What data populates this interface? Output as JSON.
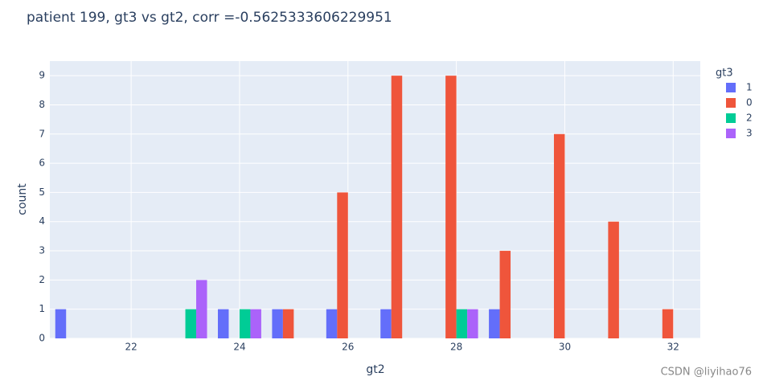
{
  "chart_data": {
    "type": "bar",
    "barmode": "group",
    "title": "patient 199, gt3 vs gt2, corr =-0.5625333606229951",
    "x_label": "gt2",
    "y_label": "count",
    "legend_title": "gt3",
    "legend_position": "right",
    "x": [
      21,
      22,
      23,
      24,
      25,
      26,
      27,
      28,
      29,
      30,
      31,
      32
    ],
    "series": [
      {
        "name": "1",
        "color": "#636efa",
        "values": [
          1,
          null,
          null,
          1,
          1,
          1,
          1,
          null,
          1,
          null,
          null,
          null
        ]
      },
      {
        "name": "0",
        "color": "#ef553b",
        "values": [
          null,
          null,
          null,
          null,
          1,
          5,
          9,
          9,
          3,
          7,
          4,
          1
        ]
      },
      {
        "name": "2",
        "color": "#00cc96",
        "values": [
          null,
          null,
          1,
          1,
          null,
          null,
          null,
          1,
          null,
          null,
          null,
          null
        ]
      },
      {
        "name": "3",
        "color": "#ab63fa",
        "values": [
          null,
          null,
          2,
          1,
          null,
          null,
          null,
          1,
          null,
          null,
          null,
          null
        ]
      }
    ],
    "xlim": [
      20.5,
      32.5
    ],
    "xticks": [
      22,
      24,
      26,
      28,
      30,
      32
    ],
    "ylim": [
      0,
      9.5
    ],
    "yticks": [
      0,
      1,
      2,
      3,
      4,
      5,
      6,
      7,
      8,
      9
    ],
    "grid": true
  },
  "watermark": "CSDN @liyihao76"
}
